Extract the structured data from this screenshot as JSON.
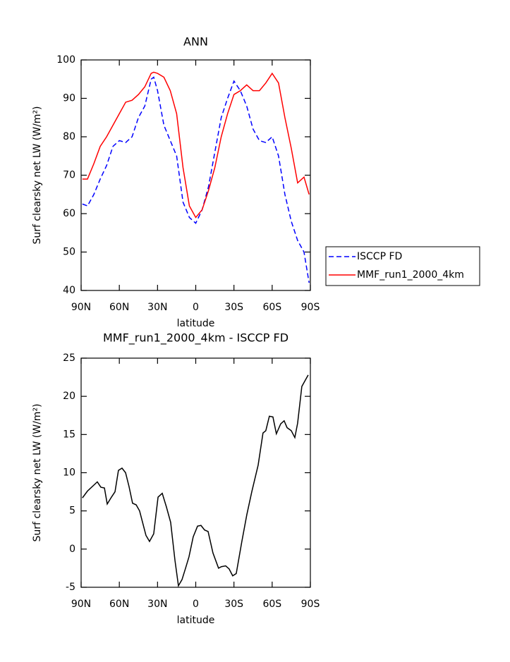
{
  "chart_data": [
    {
      "type": "line",
      "title": "ANN",
      "x_label": "latitude",
      "y_label": "Surf clearsky net LW (W/m²)",
      "x": [
        89,
        85,
        80,
        75,
        70,
        65,
        60,
        55,
        50,
        45,
        40,
        35,
        33,
        30,
        25,
        20,
        15,
        10,
        5,
        0,
        -5,
        -10,
        -15,
        -20,
        -25,
        -30,
        -35,
        -40,
        -45,
        -50,
        -55,
        -60,
        -65,
        -70,
        -75,
        -80,
        -85,
        -89
      ],
      "series": [
        {
          "name": "ISCCP FD",
          "color": "#0000ff",
          "line_style": "dashed",
          "values": [
            62.5,
            62,
            65,
            69,
            72.5,
            77.5,
            79,
            78.5,
            80,
            85,
            88,
            95,
            95.5,
            92,
            83,
            79,
            75,
            63,
            59,
            57.5,
            61,
            67,
            76,
            85,
            90,
            94.5,
            92,
            88,
            82,
            79,
            78.5,
            80,
            75,
            65,
            58,
            53,
            50,
            42
          ]
        },
        {
          "name": "MMF_run1_2000_4km",
          "color": "#ff0000",
          "line_style": "solid",
          "values": [
            69,
            69,
            73,
            77.5,
            80,
            83,
            86,
            89,
            89.5,
            91,
            93,
            96.5,
            96.8,
            96.5,
            95.5,
            92,
            86,
            72,
            62,
            59,
            61,
            66,
            72,
            80,
            86,
            91,
            92,
            93.5,
            92,
            92,
            94,
            96.5,
            94,
            85,
            77,
            68,
            69.5,
            65
          ]
        }
      ],
      "xlim": [
        90,
        -90
      ],
      "xticks": [
        {
          "value": 90,
          "label": "90N"
        },
        {
          "value": 60,
          "label": "60N"
        },
        {
          "value": 30,
          "label": "30N"
        },
        0,
        {
          "value": -30,
          "label": "30S"
        },
        {
          "value": -60,
          "label": "60S"
        },
        {
          "value": -90,
          "label": "90S"
        }
      ],
      "ylim": [
        40,
        100
      ],
      "yticks": [
        40,
        50,
        60,
        70,
        80,
        90,
        100
      ],
      "legend": "outside right"
    },
    {
      "type": "line",
      "title": "MMF_run1_2000_4km - ISCCP FD",
      "x_label": "latitude",
      "y_label": "Surf clearsky net LW (W/m²)",
      "x": [
        89,
        85,
        77.3,
        74.5,
        71.7,
        69.5,
        66.2,
        63.4,
        60.7,
        57.9,
        55.1,
        52.4,
        49.6,
        46.8,
        44.1,
        39.1,
        36.3,
        33,
        29.6,
        26.3,
        23,
        19.7,
        16.3,
        13.6,
        10.8,
        8,
        5.3,
        2,
        -1.4,
        -4.1,
        -6.9,
        -9.7,
        -13.5,
        -17.9,
        -20.2,
        -23.5,
        -26.2,
        -29,
        -31.8,
        -36.2,
        -40.1,
        -44,
        -49,
        -52.8,
        -55,
        -57.8,
        -60.6,
        -63.3,
        -66.7,
        -69.4,
        -71.7,
        -75,
        -77.8,
        -80,
        -83.3,
        -88.3
      ],
      "values": [
        6.7,
        7.6,
        8.8,
        8.1,
        8,
        5.9,
        6.8,
        7.5,
        10.3,
        10.6,
        10,
        8.2,
        6,
        5.8,
        5,
        1.8,
        1,
        2,
        6.8,
        7.3,
        5.5,
        3.5,
        -1.5,
        -4.8,
        -4,
        -2.5,
        -1,
        1.6,
        3,
        3.1,
        2.5,
        2.3,
        -0.5,
        -2.5,
        -2.3,
        -2.2,
        -2.6,
        -3.5,
        -3.2,
        1,
        4.5,
        7.5,
        11,
        15.2,
        15.5,
        17.4,
        17.3,
        15.1,
        16.4,
        16.8,
        15.9,
        15.5,
        14.6,
        16.5,
        21.3,
        22.8
      ],
      "color": "#000000",
      "line_style": "solid",
      "xlim": [
        90,
        -90
      ],
      "xticks": [
        {
          "value": 90,
          "label": "90N"
        },
        {
          "value": 60,
          "label": "60N"
        },
        {
          "value": 30,
          "label": "30N"
        },
        0,
        {
          "value": -30,
          "label": "30S"
        },
        {
          "value": -60,
          "label": "60S"
        },
        {
          "value": -90,
          "label": "90S"
        }
      ],
      "ylim": [
        -5,
        25
      ],
      "yticks": [
        -5,
        0,
        5,
        10,
        15,
        20,
        25
      ]
    }
  ]
}
